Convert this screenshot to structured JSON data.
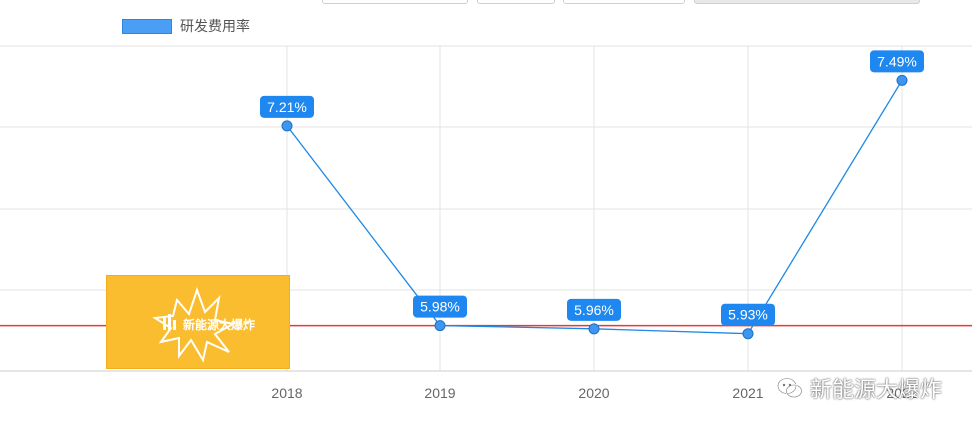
{
  "legend": {
    "label": "研发费用率",
    "color": "#4a9ff5"
  },
  "watermark": {
    "text": "新能源大爆炸",
    "icon": "wechat-icon"
  },
  "badge": {
    "text": "新能源大爆炸",
    "color": "#fbbd30"
  },
  "chart_data": {
    "type": "line",
    "categories": [
      "2018",
      "2019",
      "2020",
      "2021",
      "2022"
    ],
    "series": [
      {
        "name": "研发费用率",
        "values": [
          7.21,
          5.98,
          5.96,
          5.93,
          7.49
        ],
        "labels": [
          "7.21%",
          "5.98%",
          "5.96%",
          "5.93%",
          "7.49%"
        ],
        "color": "#1e88e5"
      }
    ],
    "reference_line": {
      "value": 5.98,
      "color": "#e53935"
    },
    "ylim": [
      5.5,
      7.5
    ],
    "grid": true,
    "legend_position": "top-left",
    "title": "",
    "xlabel": "",
    "ylabel": ""
  }
}
